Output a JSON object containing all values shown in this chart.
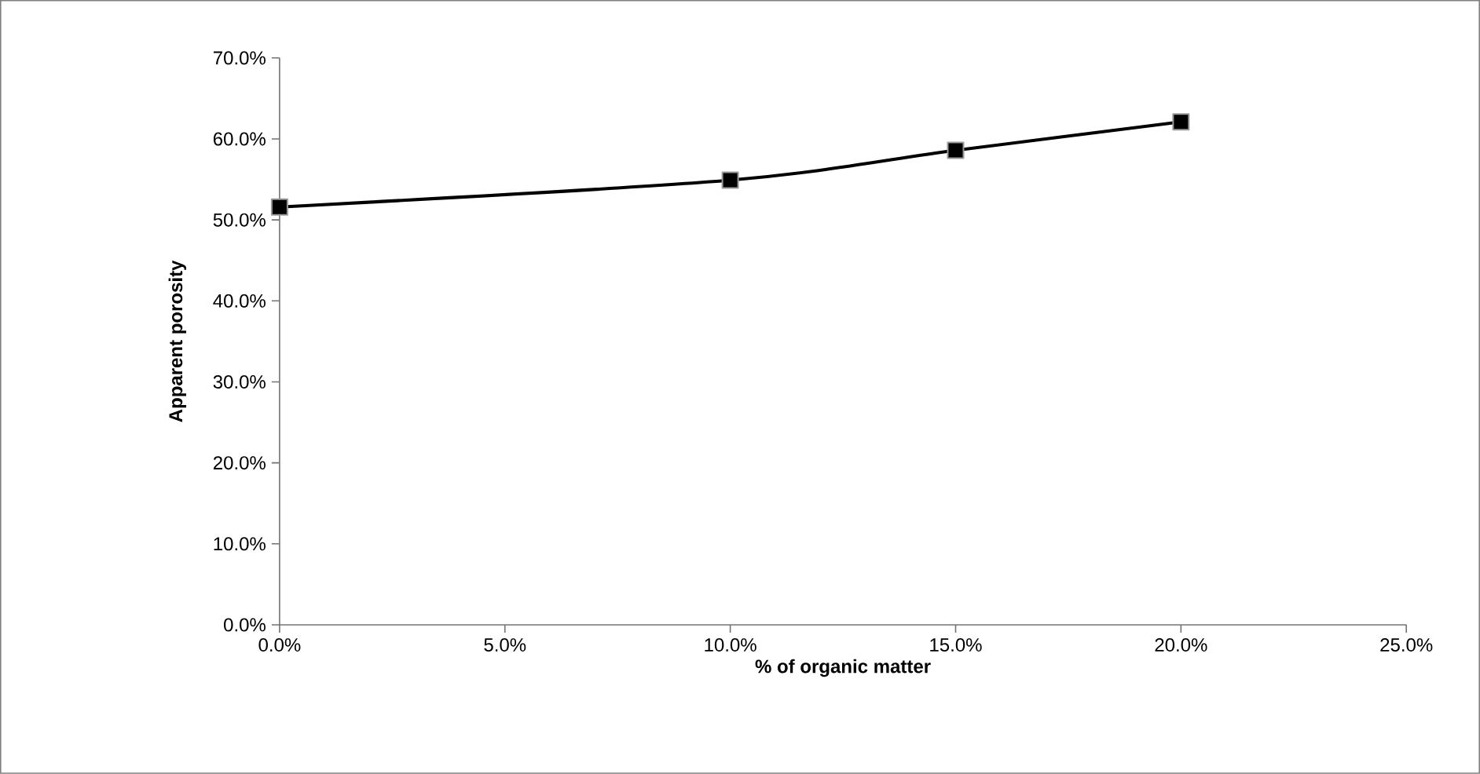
{
  "chart_data": {
    "type": "line",
    "xlabel": "% of organic matter",
    "ylabel": "Apparent porosity",
    "x": [
      0,
      10,
      15,
      20
    ],
    "series": [
      {
        "color": "#000000",
        "values": [
          51.6,
          54.9,
          58.6,
          62.1
        ]
      }
    ],
    "xlim": [
      0,
      25
    ],
    "xticks": [
      {
        "value": 0,
        "label": "0.0%"
      },
      {
        "value": 5,
        "label": "5.0%"
      },
      {
        "value": 10,
        "label": "10.0%"
      },
      {
        "value": 15,
        "label": "15.0%"
      },
      {
        "value": 20,
        "label": "20.0%"
      },
      {
        "value": 25,
        "label": "25.0%"
      }
    ],
    "ylim": [
      0,
      70
    ],
    "yticks": [
      {
        "value": 0,
        "label": "0.0%"
      },
      {
        "value": 10,
        "label": "10.0%"
      },
      {
        "value": 20,
        "label": "20.0%"
      },
      {
        "value": 30,
        "label": "30.0%"
      },
      {
        "value": 40,
        "label": "40.0%"
      },
      {
        "value": 50,
        "label": "50.0%"
      },
      {
        "value": 60,
        "label": "60.0%"
      },
      {
        "value": 70,
        "label": "70.0%"
      }
    ],
    "grid": false,
    "marker": "square",
    "line_style": "solid"
  }
}
